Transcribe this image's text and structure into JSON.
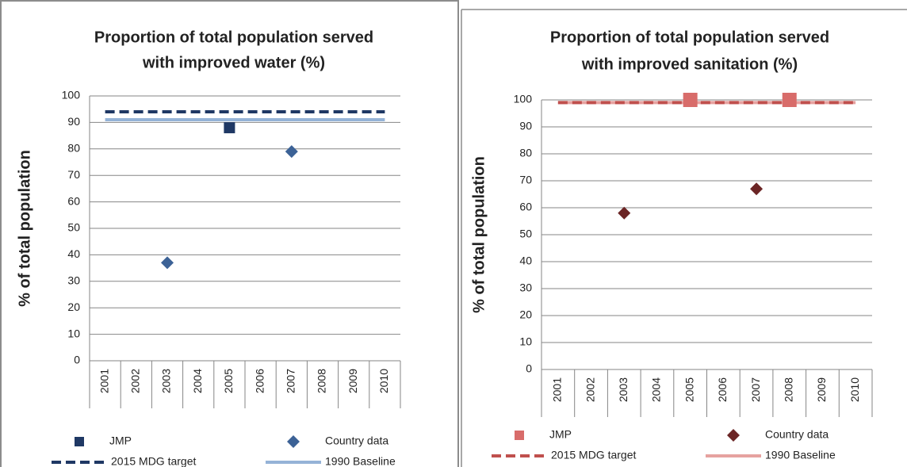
{
  "chart_data": [
    {
      "type": "scatter",
      "title": [
        "Proportion of total population served",
        "with improved water (%)"
      ],
      "y_label": "% of total population",
      "categories": [
        "2001",
        "2002",
        "2003",
        "2004",
        "2005",
        "2006",
        "2007",
        "2008",
        "2009",
        "2010"
      ],
      "ylim": [
        0,
        100
      ],
      "yticks": [
        0,
        10,
        20,
        30,
        40,
        50,
        60,
        70,
        80,
        90,
        100
      ],
      "grid": true,
      "legend": "bottom",
      "series": [
        {
          "name": "JMP",
          "color": "#1f3864",
          "marker": "square",
          "values": [
            null,
            null,
            null,
            null,
            88,
            null,
            null,
            null,
            null,
            null
          ]
        },
        {
          "name": "Country data",
          "color": "#3c6296",
          "marker": "diamond",
          "values": [
            null,
            null,
            37,
            null,
            null,
            null,
            79,
            null,
            null,
            null
          ]
        },
        {
          "name": "2015 MDG target",
          "color": "#1f3864",
          "marker": "dashed",
          "values": [
            94,
            94,
            94,
            94,
            94,
            94,
            94,
            94,
            94,
            94
          ]
        },
        {
          "name": "1990 Baseline",
          "color": "#95b3d7",
          "marker": "solid",
          "values": [
            91,
            91,
            91,
            91,
            91,
            91,
            91,
            91,
            91,
            91
          ]
        }
      ]
    },
    {
      "type": "scatter",
      "title": [
        "Proportion of total population served",
        "with improved sanitation (%)"
      ],
      "y_label": "% of total population",
      "categories": [
        "2001",
        "2002",
        "2003",
        "2004",
        "2005",
        "2006",
        "2007",
        "2008",
        "2009",
        "2010"
      ],
      "ylim": [
        0,
        100
      ],
      "yticks": [
        0,
        10,
        20,
        30,
        40,
        50,
        60,
        70,
        80,
        90,
        100
      ],
      "grid": true,
      "legend": "bottom",
      "series": [
        {
          "name": "JMP",
          "color": "#d86c6a",
          "marker": "square",
          "values": [
            null,
            null,
            null,
            null,
            100,
            null,
            null,
            100,
            null,
            null
          ]
        },
        {
          "name": "Country data",
          "color": "#6b2525",
          "marker": "diamond",
          "values": [
            null,
            null,
            58,
            null,
            null,
            null,
            67,
            null,
            null,
            null
          ]
        },
        {
          "name": "2015 MDG target",
          "color": "#c0504d",
          "marker": "dashed",
          "values": [
            99,
            99,
            99,
            99,
            99,
            99,
            99,
            99,
            99,
            99
          ]
        },
        {
          "name": "1990 Baseline",
          "color": "#e6a2a0",
          "marker": "solid",
          "values": [
            99,
            99,
            99,
            99,
            99,
            99,
            99,
            99,
            99,
            99
          ]
        }
      ]
    }
  ]
}
